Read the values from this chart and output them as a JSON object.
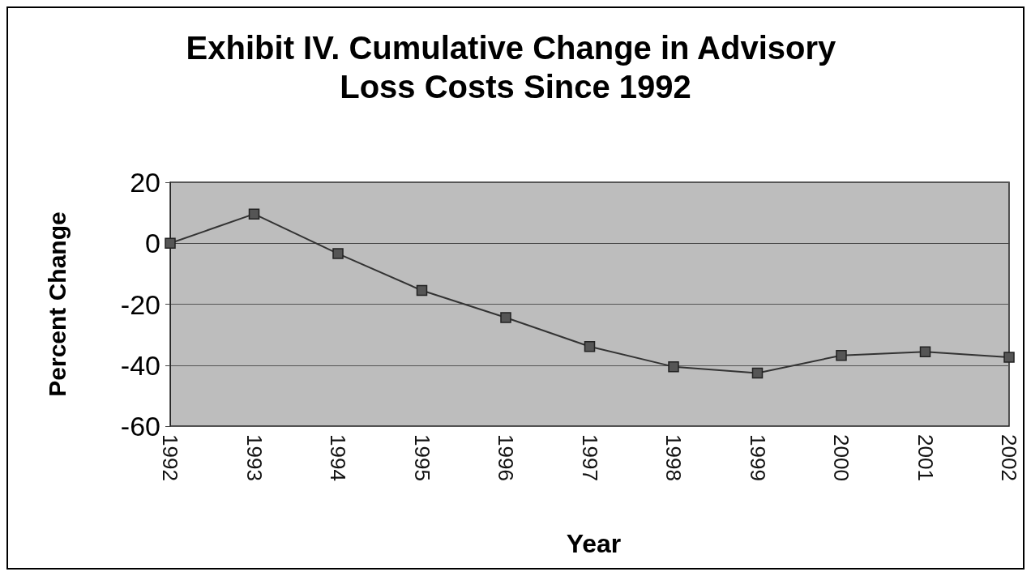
{
  "chart_data": {
    "type": "line",
    "title": "Exhibit IV. Cumulative Change in Advisory Loss Costs Since 1992",
    "xlabel": "Year",
    "ylabel": "Percent Change",
    "categories": [
      "1992",
      "1993",
      "1994",
      "1995",
      "1996",
      "1997",
      "1998",
      "1999",
      "2000",
      "2001",
      "2002"
    ],
    "series": [
      {
        "color": "#333333",
        "values": [
          0,
          9.6,
          -3.4,
          -15.5,
          -24.4,
          -33.9,
          -40.5,
          -42.6,
          -36.8,
          -35.6,
          -37.4
        ]
      }
    ],
    "ylim": [
      -60,
      20
    ],
    "yticks": [
      -60,
      -40,
      -20,
      0,
      20
    ],
    "grid": "y",
    "marker": "square",
    "line_style": "solid"
  }
}
